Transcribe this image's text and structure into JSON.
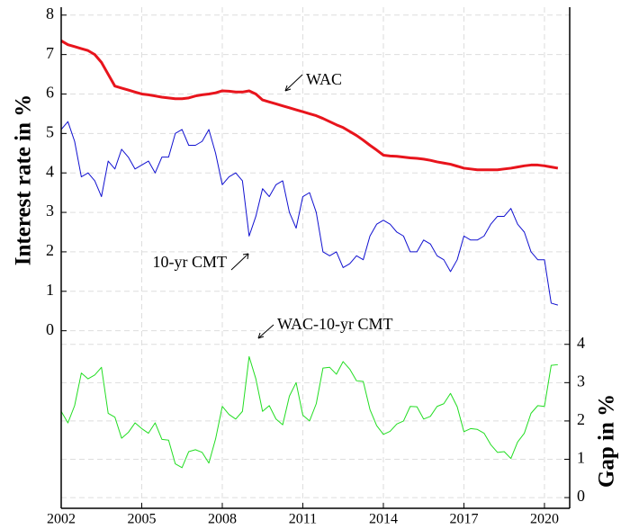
{
  "chart_data": {
    "type": "line",
    "y_label": "Interest rate in %",
    "y2_label": "Gap in %",
    "annotations": [
      "WAC",
      "10-yr CMT",
      "WAC-10-yr CMT"
    ],
    "xlim": [
      2002,
      2020.94
    ],
    "xticks": [
      2002,
      2005,
      2008,
      2011,
      2014,
      2017,
      2020
    ],
    "ylim": [
      -4.5,
      8.2
    ],
    "yticks": [
      0,
      1,
      2,
      3,
      4,
      5,
      6,
      7,
      8
    ],
    "y2lim": [
      -0.28,
      12.8
    ],
    "y2ticks": [
      0,
      1,
      2,
      3,
      4
    ],
    "grid": true,
    "x": [
      2002,
      2002.25,
      2002.5,
      2002.75,
      2003,
      2003.25,
      2003.5,
      2003.75,
      2004,
      2004.25,
      2004.5,
      2004.75,
      2005,
      2005.25,
      2005.5,
      2005.75,
      2006,
      2006.25,
      2006.5,
      2006.75,
      2007,
      2007.25,
      2007.5,
      2007.75,
      2008,
      2008.25,
      2008.5,
      2008.75,
      2009,
      2009.25,
      2009.5,
      2009.75,
      2010,
      2010.25,
      2010.5,
      2010.75,
      2011,
      2011.25,
      2011.5,
      2011.75,
      2012,
      2012.25,
      2012.5,
      2012.75,
      2013,
      2013.25,
      2013.5,
      2013.75,
      2014,
      2014.25,
      2014.5,
      2014.75,
      2015,
      2015.25,
      2015.5,
      2015.75,
      2016,
      2016.25,
      2016.5,
      2016.75,
      2017,
      2017.25,
      2017.5,
      2017.75,
      2018,
      2018.25,
      2018.5,
      2018.75,
      2019,
      2019.25,
      2019.5,
      2019.75,
      2020,
      2020.25,
      2020.5
    ],
    "series": [
      {
        "name": "WAC",
        "color": "#e8141c",
        "values": [
          7.35,
          7.25,
          7.2,
          7.15,
          7.1,
          7.0,
          6.8,
          6.5,
          6.2,
          6.15,
          6.1,
          6.05,
          6.0,
          5.98,
          5.95,
          5.92,
          5.9,
          5.88,
          5.88,
          5.9,
          5.95,
          5.98,
          6.0,
          6.03,
          6.08,
          6.07,
          6.05,
          6.05,
          6.08,
          6.0,
          5.85,
          5.8,
          5.75,
          5.7,
          5.65,
          5.6,
          5.55,
          5.5,
          5.45,
          5.38,
          5.3,
          5.22,
          5.15,
          5.05,
          4.95,
          4.83,
          4.7,
          4.58,
          4.45,
          4.43,
          4.42,
          4.4,
          4.38,
          4.37,
          4.35,
          4.32,
          4.28,
          4.25,
          4.22,
          4.17,
          4.12,
          4.1,
          4.08,
          4.08,
          4.08,
          4.08,
          4.1,
          4.12,
          4.15,
          4.18,
          4.2,
          4.2,
          4.18,
          4.15,
          4.12
        ]
      },
      {
        "name": "10-yr CMT",
        "color": "#1010d0",
        "values": [
          5.1,
          5.3,
          4.8,
          3.9,
          4.0,
          3.8,
          3.4,
          4.3,
          4.1,
          4.6,
          4.4,
          4.1,
          4.2,
          4.3,
          4.0,
          4.4,
          4.4,
          5.0,
          5.1,
          4.7,
          4.7,
          4.8,
          5.1,
          4.5,
          3.7,
          3.9,
          4.0,
          3.8,
          2.4,
          2.9,
          3.6,
          3.4,
          3.7,
          3.8,
          3.0,
          2.6,
          3.4,
          3.5,
          3.0,
          2.0,
          1.9,
          2.0,
          1.6,
          1.7,
          1.9,
          1.8,
          2.4,
          2.7,
          2.8,
          2.7,
          2.5,
          2.4,
          2.0,
          2.0,
          2.3,
          2.2,
          1.9,
          1.8,
          1.5,
          1.8,
          2.4,
          2.3,
          2.3,
          2.4,
          2.7,
          2.9,
          2.9,
          3.1,
          2.7,
          2.5,
          2.0,
          1.8,
          1.8,
          0.7,
          0.65
        ]
      },
      {
        "name": "WAC-10-yr CMT",
        "color": "#22dd22",
        "axis": "y2",
        "values": [
          2.25,
          1.95,
          2.4,
          3.25,
          3.1,
          3.2,
          3.4,
          2.2,
          2.1,
          1.55,
          1.7,
          1.95,
          1.8,
          1.68,
          1.95,
          1.52,
          1.5,
          0.88,
          0.78,
          1.2,
          1.25,
          1.18,
          0.9,
          1.53,
          2.38,
          2.17,
          2.05,
          2.25,
          3.68,
          3.1,
          2.25,
          2.4,
          2.05,
          1.9,
          2.65,
          3.0,
          2.15,
          2.0,
          2.45,
          3.38,
          3.4,
          3.22,
          3.55,
          3.35,
          3.05,
          3.03,
          2.3,
          1.88,
          1.65,
          1.73,
          1.92,
          2.0,
          2.38,
          2.37,
          2.05,
          2.12,
          2.38,
          2.45,
          2.72,
          2.37,
          1.72,
          1.8,
          1.78,
          1.68,
          1.38,
          1.18,
          1.2,
          1.02,
          1.45,
          1.68,
          2.2,
          2.4,
          2.38,
          3.45,
          3.47
        ]
      }
    ]
  }
}
